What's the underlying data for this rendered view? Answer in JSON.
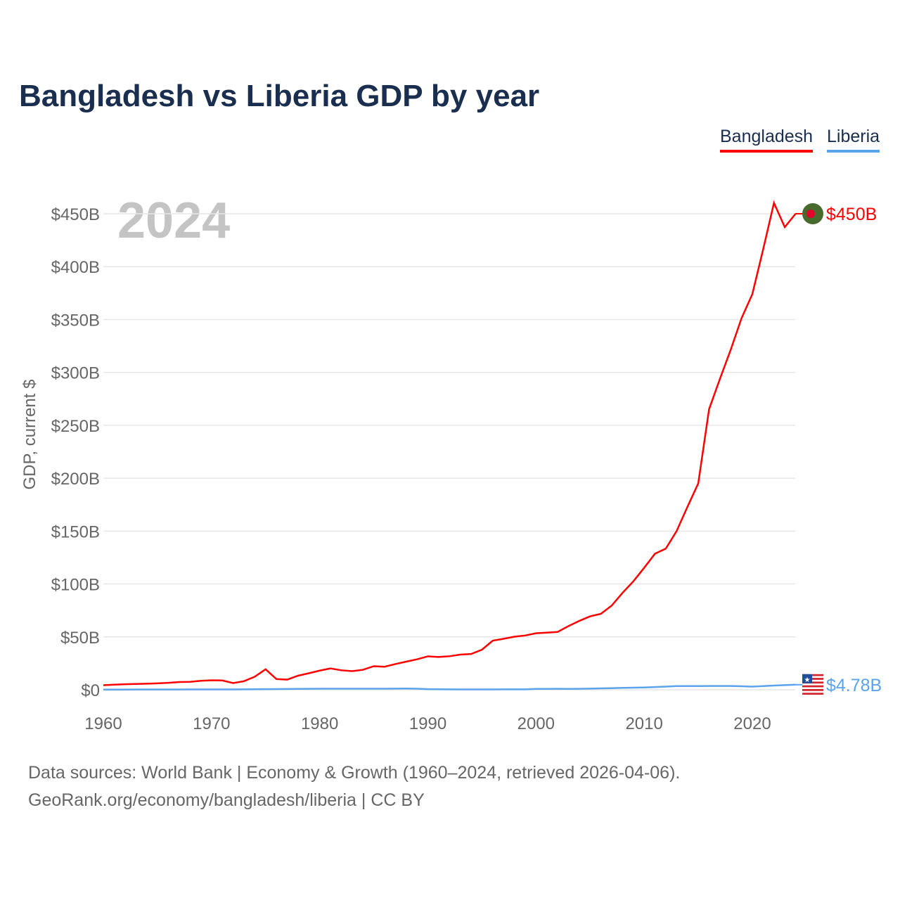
{
  "title": "Bangladesh vs Liberia GDP by year",
  "footer": {
    "line1": "Data sources: World Bank | Economy & Growth (1960–2024, retrieved 2026-04-06).",
    "line2": "GeoRank.org/economy/bangladesh/liberia | CC BY"
  },
  "chart_data": {
    "type": "line",
    "title": "Bangladesh vs Liberia GDP by year",
    "ylabel": "GDP, current $",
    "xlabel": "",
    "year_label": "2024",
    "xlim": [
      1960,
      2024
    ],
    "ylim": [
      0,
      450
    ],
    "x_ticks": [
      1960,
      1970,
      1980,
      1990,
      2000,
      2010,
      2020
    ],
    "y_ticks": [
      {
        "v": 0,
        "label": "$0"
      },
      {
        "v": 50,
        "label": "$50B"
      },
      {
        "v": 100,
        "label": "$100B"
      },
      {
        "v": 150,
        "label": "$150B"
      },
      {
        "v": 200,
        "label": "$200B"
      },
      {
        "v": 250,
        "label": "$250B"
      },
      {
        "v": 300,
        "label": "$300B"
      },
      {
        "v": 350,
        "label": "$350B"
      },
      {
        "v": 400,
        "label": "$400B"
      },
      {
        "v": 450,
        "label": "$450B"
      }
    ],
    "grid": true,
    "legend_position": "top-right",
    "series": [
      {
        "name": "Bangladesh",
        "color": "#ff0000",
        "end_label": "$450B",
        "flag": "bangladesh-flag",
        "values": [
          4.3,
          4.8,
          5.2,
          5.5,
          5.7,
          6.1,
          6.6,
          7.3,
          7.5,
          8.5,
          9.0,
          8.8,
          6.3,
          8.1,
          12.4,
          19.4,
          10.1,
          9.6,
          13.3,
          15.6,
          18.1,
          20.2,
          18.4,
          17.6,
          18.9,
          22.3,
          21.8,
          24.3,
          26.6,
          28.8,
          31.6,
          31.0,
          31.7,
          33.2,
          33.8,
          37.9,
          46.4,
          48.2,
          50.2,
          51.3,
          53.4,
          54.0,
          54.7,
          60.2,
          65.1,
          69.4,
          71.8,
          79.6,
          91.6,
          102.5,
          115.3,
          128.6,
          133.4,
          150.0,
          172.9,
          195.1,
          265.2,
          293.8,
          321.4,
          351.2,
          374.0,
          416.3,
          460.2,
          437.4,
          450.0
        ]
      },
      {
        "name": "Liberia",
        "color": "#5ba3ea",
        "end_label": "$4.78B",
        "flag": "liberia-flag",
        "values": [
          0.19,
          0.19,
          0.2,
          0.21,
          0.22,
          0.24,
          0.27,
          0.28,
          0.3,
          0.32,
          0.32,
          0.33,
          0.36,
          0.41,
          0.49,
          0.61,
          0.63,
          0.72,
          0.8,
          0.93,
          1.0,
          1.02,
          1.03,
          1.03,
          1.03,
          1.02,
          1.03,
          1.1,
          1.15,
          1.0,
          0.6,
          0.5,
          0.4,
          0.3,
          0.3,
          0.3,
          0.3,
          0.4,
          0.4,
          0.4,
          0.8,
          0.8,
          0.9,
          0.8,
          0.9,
          1.1,
          1.3,
          1.5,
          1.8,
          2.0,
          2.2,
          2.6,
          3.0,
          3.5,
          3.5,
          3.5,
          3.6,
          3.6,
          3.6,
          3.3,
          3.0,
          3.5,
          4.0,
          4.4,
          4.78
        ]
      }
    ]
  }
}
